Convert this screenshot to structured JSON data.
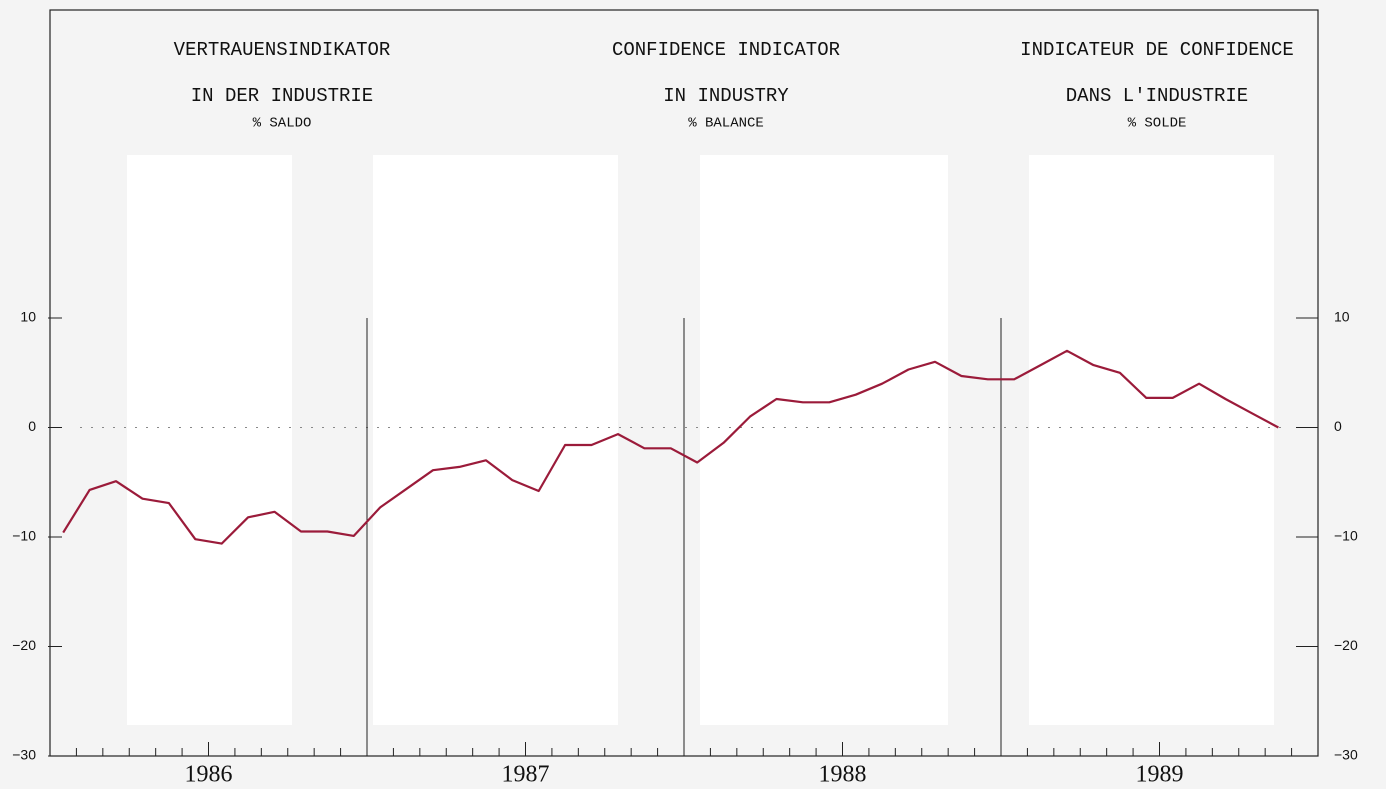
{
  "chart_data": {
    "type": "line",
    "titles": [
      {
        "lines": [
          "VERTRAUENSINDIKATOR",
          "IN DER INDUSTRIE",
          "% SALDO"
        ]
      },
      {
        "lines": [
          "CONFIDENCE INDICATOR",
          "IN INDUSTRY",
          "% BALANCE"
        ]
      },
      {
        "lines": [
          "INDICATEUR DE CONFIDENCE",
          "DANS L'INDUSTRIE",
          "% SOLDE"
        ]
      }
    ],
    "categories": [
      null,
      null,
      null,
      null,
      null,
      null,
      null,
      null,
      null,
      null,
      null,
      null,
      null,
      null,
      null,
      null,
      null,
      null,
      null,
      null,
      null,
      null,
      null,
      null,
      null,
      null,
      null,
      null,
      null,
      null,
      null,
      null,
      null,
      null,
      null,
      null,
      null,
      null,
      null,
      null,
      null,
      null,
      null,
      null,
      null,
      null,
      null
    ],
    "year_labels": [
      "1986",
      "1987",
      "1988",
      "1989"
    ],
    "series": [
      {
        "name": "Confidence indicator",
        "color": "#9b1b3a",
        "values": [
          -9.6,
          -5.7,
          -4.9,
          -6.5,
          -6.9,
          -10.2,
          -10.6,
          -8.2,
          -7.7,
          -9.5,
          -9.5,
          -9.9,
          -7.3,
          -5.6,
          -3.9,
          -3.6,
          -3.0,
          -4.8,
          -5.8,
          -1.6,
          -1.6,
          -0.6,
          -1.9,
          -1.9,
          -3.2,
          -1.4,
          1.0,
          2.6,
          2.3,
          2.3,
          3.0,
          4.0,
          5.3,
          6.0,
          4.7,
          4.4,
          4.4,
          5.7,
          7.0,
          5.7,
          5.0,
          2.7,
          2.7,
          4.0,
          2.6,
          1.3,
          0
        ]
      }
    ],
    "ylim": [
      -30,
      10
    ],
    "yticks": [
      {
        "value": -30,
        "label": "−30"
      },
      {
        "value": -20,
        "label": "−20"
      },
      {
        "value": -10,
        "label": "−10"
      },
      0,
      10
    ],
    "zero_line": "dotted"
  }
}
